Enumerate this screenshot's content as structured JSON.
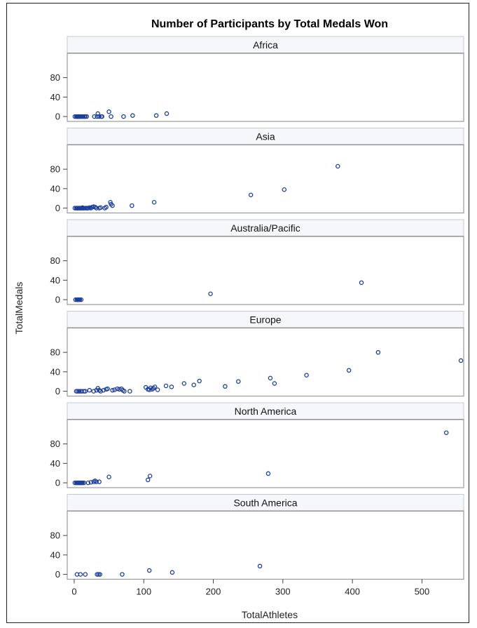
{
  "chart_data": {
    "type": "scatter",
    "title": "Number of Participants by Total Medals Won",
    "xlabel": "TotalAthletes",
    "ylabel": "TotalMedals",
    "xlim": [
      -10,
      560
    ],
    "ylim": [
      -10,
      130
    ],
    "x_ticks": [
      0,
      100,
      200,
      300,
      400,
      500
    ],
    "y_ticks": [
      0,
      40,
      80
    ],
    "marker_color": "#1f3f9e",
    "panels": [
      {
        "label": "Africa",
        "points": [
          [
            1,
            0
          ],
          [
            3,
            0
          ],
          [
            4,
            0
          ],
          [
            5,
            0
          ],
          [
            6,
            0
          ],
          [
            7,
            0
          ],
          [
            8,
            0
          ],
          [
            9,
            0
          ],
          [
            10,
            0
          ],
          [
            12,
            0
          ],
          [
            13,
            0
          ],
          [
            15,
            0
          ],
          [
            16,
            0
          ],
          [
            18,
            0
          ],
          [
            29,
            0
          ],
          [
            33,
            0
          ],
          [
            34,
            6
          ],
          [
            36,
            0
          ],
          [
            39,
            0
          ],
          [
            40,
            0
          ],
          [
            50,
            10
          ],
          [
            53,
            0
          ],
          [
            71,
            0
          ],
          [
            84,
            2
          ],
          [
            118,
            2
          ],
          [
            133,
            6
          ]
        ]
      },
      {
        "label": "Asia",
        "points": [
          [
            1,
            0
          ],
          [
            3,
            0
          ],
          [
            4,
            0
          ],
          [
            5,
            0
          ],
          [
            6,
            0
          ],
          [
            7,
            0
          ],
          [
            8,
            0
          ],
          [
            9,
            0
          ],
          [
            10,
            0
          ],
          [
            11,
            0
          ],
          [
            12,
            1
          ],
          [
            13,
            0
          ],
          [
            14,
            0
          ],
          [
            16,
            0
          ],
          [
            18,
            0
          ],
          [
            19,
            0
          ],
          [
            20,
            0
          ],
          [
            22,
            1
          ],
          [
            24,
            0
          ],
          [
            26,
            2
          ],
          [
            28,
            3
          ],
          [
            30,
            2
          ],
          [
            32,
            0
          ],
          [
            36,
            0
          ],
          [
            38,
            1
          ],
          [
            44,
            0
          ],
          [
            46,
            2
          ],
          [
            52,
            12
          ],
          [
            53,
            8
          ],
          [
            55,
            5
          ],
          [
            83,
            5
          ],
          [
            115,
            12
          ],
          [
            254,
            27
          ],
          [
            302,
            38
          ],
          [
            379,
            86
          ]
        ]
      },
      {
        "label": "Australia/Pacific",
        "points": [
          [
            2,
            0
          ],
          [
            4,
            0
          ],
          [
            5,
            0
          ],
          [
            6,
            0
          ],
          [
            7,
            0
          ],
          [
            8,
            0
          ],
          [
            10,
            0
          ],
          [
            196,
            12
          ],
          [
            413,
            35
          ]
        ]
      },
      {
        "label": "Europe",
        "points": [
          [
            3,
            0
          ],
          [
            5,
            0
          ],
          [
            7,
            0
          ],
          [
            9,
            0
          ],
          [
            11,
            0
          ],
          [
            14,
            0
          ],
          [
            16,
            0
          ],
          [
            22,
            2
          ],
          [
            28,
            0
          ],
          [
            32,
            2
          ],
          [
            34,
            6
          ],
          [
            36,
            2
          ],
          [
            38,
            0
          ],
          [
            42,
            2
          ],
          [
            46,
            4
          ],
          [
            48,
            5
          ],
          [
            55,
            2
          ],
          [
            58,
            3
          ],
          [
            62,
            5
          ],
          [
            65,
            4
          ],
          [
            68,
            5
          ],
          [
            70,
            2
          ],
          [
            72,
            0
          ],
          [
            80,
            0
          ],
          [
            103,
            8
          ],
          [
            106,
            4
          ],
          [
            108,
            3
          ],
          [
            110,
            7
          ],
          [
            112,
            4
          ],
          [
            114,
            6
          ],
          [
            116,
            9
          ],
          [
            120,
            3
          ],
          [
            132,
            11
          ],
          [
            140,
            9
          ],
          [
            158,
            16
          ],
          [
            172,
            13
          ],
          [
            180,
            21
          ],
          [
            217,
            10
          ],
          [
            236,
            20
          ],
          [
            282,
            27
          ],
          [
            288,
            16
          ],
          [
            334,
            33
          ],
          [
            395,
            43
          ],
          [
            437,
            80
          ],
          [
            556,
            63
          ]
        ]
      },
      {
        "label": "North America",
        "points": [
          [
            1,
            0
          ],
          [
            3,
            0
          ],
          [
            4,
            0
          ],
          [
            5,
            0
          ],
          [
            6,
            0
          ],
          [
            7,
            0
          ],
          [
            8,
            0
          ],
          [
            9,
            0
          ],
          [
            10,
            0
          ],
          [
            11,
            0
          ],
          [
            12,
            0
          ],
          [
            14,
            0
          ],
          [
            20,
            0
          ],
          [
            24,
            1
          ],
          [
            28,
            2
          ],
          [
            30,
            4
          ],
          [
            32,
            2
          ],
          [
            36,
            2
          ],
          [
            50,
            12
          ],
          [
            106,
            6
          ],
          [
            109,
            14
          ],
          [
            279,
            19
          ],
          [
            535,
            103
          ]
        ]
      },
      {
        "label": "South America",
        "points": [
          [
            4,
            0
          ],
          [
            9,
            0
          ],
          [
            16,
            0
          ],
          [
            33,
            0
          ],
          [
            35,
            0
          ],
          [
            37,
            0
          ],
          [
            69,
            0
          ],
          [
            108,
            8
          ],
          [
            141,
            4
          ],
          [
            267,
            17
          ]
        ]
      }
    ]
  }
}
